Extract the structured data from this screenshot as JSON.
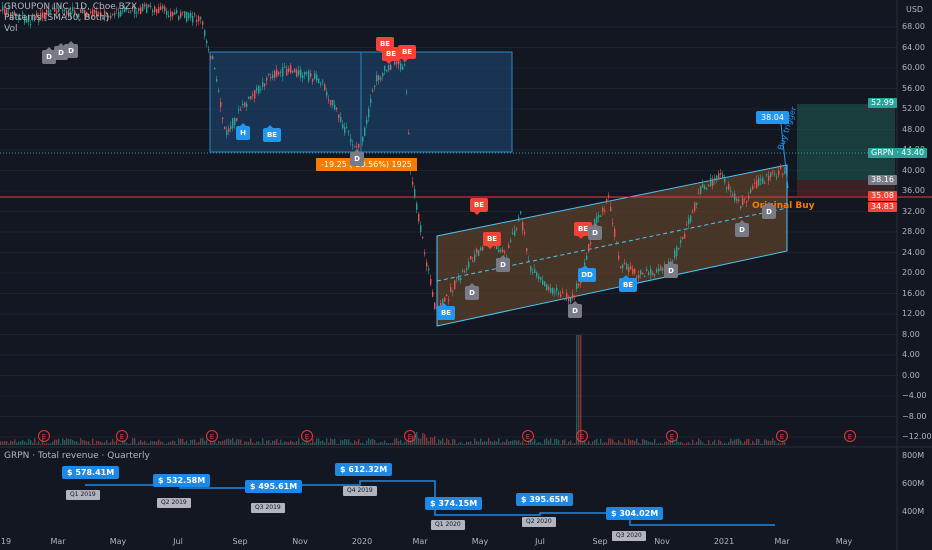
{
  "legend": {
    "symbol": "GROUPON INC, 1D, Cboe BZX",
    "indicator": "Patterns [SMA50, Both]",
    "volume": "Vol"
  },
  "currency": "USD",
  "y_axis_ticks": [
    "68.00",
    "64.00",
    "60.00",
    "56.00",
    "52.00",
    "48.00",
    "44.00",
    "40.00",
    "36.00",
    "32.00",
    "28.00",
    "24.00",
    "20.00",
    "16.00",
    "12.00",
    "8.00",
    "4.00",
    "0.00",
    "−4.00",
    "−8.00",
    "−12.00"
  ],
  "x_axis_ticks": [
    "19",
    "Mar",
    "May",
    "Jul",
    "Sep",
    "Nov",
    "2020",
    "Mar",
    "May",
    "Jul",
    "Sep",
    "Nov",
    "2021",
    "Mar",
    "May"
  ],
  "price_tags": [
    {
      "label": "52.99",
      "color": "#26a69a"
    },
    {
      "label": "GRPN · 43.40",
      "color": "#26a69a"
    },
    {
      "label": "38.16",
      "color": "#787b86"
    },
    {
      "label": "35.08",
      "color": "#f44336"
    },
    {
      "label": "34.83",
      "color": "#f44336"
    }
  ],
  "annotations": {
    "range_stats": "-19.25 (-30.56%)  1925",
    "buy_trigger": "Buy trigger",
    "original_buy": "Original Buy",
    "target_label": "38.04"
  },
  "markers": [
    {
      "text": "D",
      "kind": "gray"
    },
    {
      "text": "D",
      "kind": "gray"
    },
    {
      "text": "D",
      "kind": "gray"
    },
    {
      "text": "H",
      "kind": "bull"
    },
    {
      "text": "BE",
      "kind": "bull"
    },
    {
      "text": "BE",
      "kind": "bear"
    },
    {
      "text": "BE",
      "kind": "bear"
    },
    {
      "text": "BE",
      "kind": "bear"
    },
    {
      "text": "D",
      "kind": "gray"
    },
    {
      "text": "BE",
      "kind": "bear"
    },
    {
      "text": "BE",
      "kind": "bear"
    },
    {
      "text": "BE",
      "kind": "bear"
    },
    {
      "text": "D",
      "kind": "gray"
    },
    {
      "text": "D",
      "kind": "gray"
    },
    {
      "text": "BE",
      "kind": "bull"
    },
    {
      "text": "D",
      "kind": "gray"
    },
    {
      "text": "DD",
      "kind": "bull"
    },
    {
      "text": "D",
      "kind": "gray"
    },
    {
      "text": "BE",
      "kind": "bull"
    },
    {
      "text": "D",
      "kind": "gray"
    },
    {
      "text": "D",
      "kind": "gray"
    },
    {
      "text": "D",
      "kind": "gray"
    }
  ],
  "earnings_marker": "E",
  "revenue_panel": {
    "title": "GRPN · Total revenue · Quarterly",
    "y_ticks": [
      "800M",
      "600M",
      "400M"
    ],
    "bars": [
      {
        "value": "$ 578.41M",
        "quarter": "Q1 2019"
      },
      {
        "value": "$ 532.58M",
        "quarter": "Q2 2019"
      },
      {
        "value": "$ 495.61M",
        "quarter": "Q3 2019"
      },
      {
        "value": "$ 612.32M",
        "quarter": "Q4 2019"
      },
      {
        "value": "$ 374.15M",
        "quarter": "Q1 2020"
      },
      {
        "value": "$ 395.65M",
        "quarter": "Q2 2020"
      },
      {
        "value": "$ 304.02M",
        "quarter": "Q3 2020"
      }
    ]
  },
  "colors": {
    "background": "#131722",
    "bull": "#26a69a",
    "bear": "#ef5350",
    "rect_fill": "#1e4d7a",
    "channel_fill": "#6b4a2c",
    "accent_blue": "#2196f3",
    "red_line": "#f23645",
    "orange": "#f57c00"
  }
}
